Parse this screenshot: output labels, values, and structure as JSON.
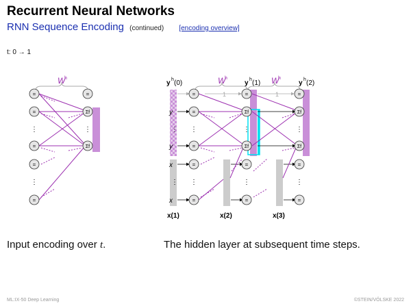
{
  "slide": {
    "title": "Recurrent Neural Networks",
    "subtitle": "RNN Sequence Encoding",
    "subtitle_note": "(continued)",
    "link_label": "[encoding overview]",
    "step": "t: 0 → 1"
  },
  "diagram": {
    "weight_label": "W",
    "weight_sup": "h",
    "hidden_labels": [
      "(0)",
      "(1)",
      "(2)"
    ],
    "input_labels": [
      "x(1)",
      "x(2)",
      "x(3)"
    ],
    "recurrence_value": "1",
    "node_identity": "=",
    "node_sum": "Σf",
    "vdots": "⋮",
    "colors": {
      "hidden": "#c98fd8",
      "input": "#cccccc",
      "edge": "#9c2fb0",
      "highlight": "#00e0f0"
    }
  },
  "captions": {
    "left_text": "Input encoding over ",
    "left_var": "t",
    "left_end": ".",
    "right": "The hidden layer at subsequent time steps."
  },
  "footer": {
    "left": "ML:IX-50   Deep Learning",
    "right": "©STEIN/VÖLSKE 2022"
  }
}
